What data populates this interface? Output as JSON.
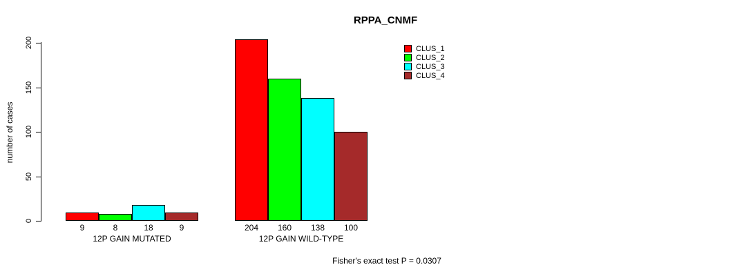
{
  "chart_data": {
    "type": "bar",
    "title": "RPPA_CNMF",
    "ylabel": "number of cases",
    "xlabel": "",
    "ylim": [
      0,
      200
    ],
    "yticks": [
      0,
      50,
      100,
      150,
      200
    ],
    "grid": false,
    "legend_position": "top-right",
    "categories": [
      "12P GAIN MUTATED",
      "12P GAIN WILD-TYPE"
    ],
    "series": [
      {
        "name": "CLUS_1",
        "color": "#ff0000",
        "values": [
          9,
          204
        ]
      },
      {
        "name": "CLUS_2",
        "color": "#00ff00",
        "values": [
          8,
          160
        ]
      },
      {
        "name": "CLUS_3",
        "color": "#00ffff",
        "values": [
          18,
          138
        ]
      },
      {
        "name": "CLUS_4",
        "color": "#a52a2a",
        "values": [
          9,
          100
        ]
      }
    ],
    "bar_value_labels": true,
    "annotation": "Fisher's exact test P = 0.0307",
    "axis_color": "#000000",
    "text_color": "#000000",
    "background_color": "#ffffff"
  }
}
